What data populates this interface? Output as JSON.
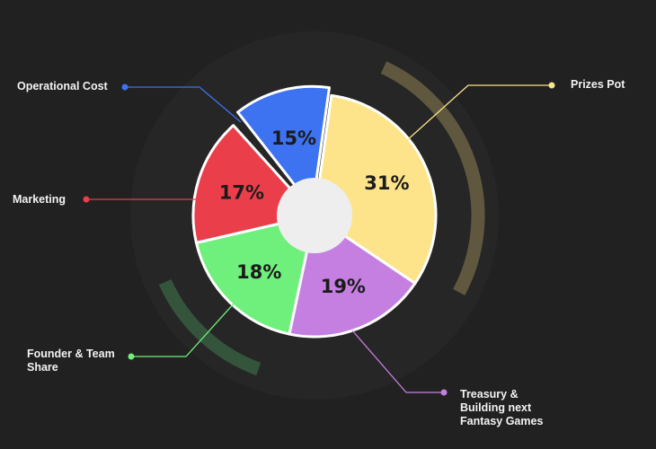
{
  "chart_data": {
    "type": "pie",
    "slices": [
      {
        "label": "Prizes Pot",
        "value": 31,
        "display": "31%",
        "color": "#fde48a",
        "label_lines": [
          "Prizes Pot"
        ]
      },
      {
        "label": "Treasury & Building next Fantasy Games",
        "value": 19,
        "display": "19%",
        "color": "#c57fe1",
        "label_lines": [
          "Treasury &",
          "Building next",
          "Fantasy Games"
        ]
      },
      {
        "label": "Founder & Team Share",
        "value": 18,
        "display": "18%",
        "color": "#6fef7b",
        "label_lines": [
          "Founder & Team",
          "Share"
        ]
      },
      {
        "label": "Marketing",
        "value": 17,
        "display": "17%",
        "color": "#ea3e4b",
        "label_lines": [
          "Marketing"
        ]
      },
      {
        "label": "Operational Cost",
        "value": 15,
        "display": "15%",
        "color": "#3d72f1",
        "label_lines": [
          "Operational Cost"
        ]
      }
    ],
    "title": "",
    "legend": "callouts around chart"
  },
  "colors": {
    "background": "#212121",
    "ring": "#262626",
    "arc_accent_1": "#5f583f",
    "arc_accent_2": "#34543b",
    "center_hole": "#eeeeee",
    "label_text": "#f2f2f2"
  }
}
